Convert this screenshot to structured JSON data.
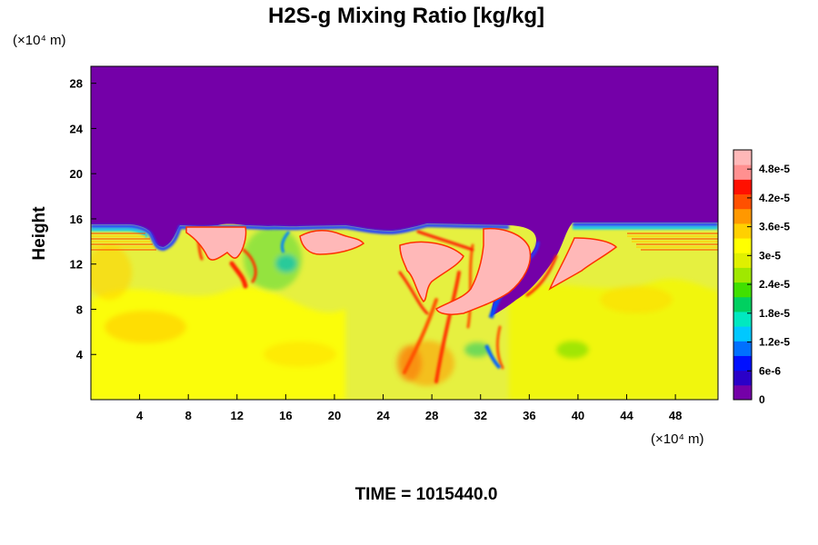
{
  "chart_data": {
    "type": "heatmap",
    "title": "H2S-g Mixing Ratio [kg/kg]",
    "ylabel": "Height",
    "x_unit_label": "(×10⁴ m)",
    "y_unit_label": "(×10⁴ m)",
    "footer": "TIME = 1015440.0",
    "xlim": [
      0,
      51.5
    ],
    "ylim": [
      0,
      29.5
    ],
    "xticks": [
      "4",
      "8",
      "12",
      "16",
      "20",
      "24",
      "28",
      "32",
      "36",
      "40",
      "44",
      "48"
    ],
    "yticks": [
      "4",
      "8",
      "12",
      "16",
      "20",
      "24",
      "28"
    ],
    "colorbar": {
      "range": [
        0,
        5.2e-05
      ],
      "tick_labels": [
        "0",
        "6e-6",
        "1.2e-5",
        "1.8e-5",
        "2.4e-5",
        "3e-5",
        "3.6e-5",
        "4.2e-5",
        "4.8e-5"
      ],
      "tick_values": [
        0,
        6e-06,
        1.2e-05,
        1.8e-05,
        2.4e-05,
        3e-05,
        3.6e-05,
        4.2e-05,
        4.8e-05
      ],
      "colors": [
        "#7400a8",
        "#2a00c8",
        "#0010ff",
        "#0070ff",
        "#00c8ff",
        "#00e8c0",
        "#00d060",
        "#40e000",
        "#a0e800",
        "#e0f000",
        "#ffff00",
        "#ffd000",
        "#ff9800",
        "#ff5000",
        "#ff1000",
        "#ff9090",
        "#ffb8b8"
      ]
    },
    "field_description": {
      "upper_region_value": 0,
      "interface_height": 15.5,
      "background_value": 3.4e-05
    },
    "pink_plumes": [
      {
        "x": [
          7.5,
          11.5
        ],
        "y": [
          11.5,
          15.5
        ]
      },
      {
        "x": [
          17.5,
          23.5
        ],
        "y": [
          12.5,
          15.5
        ]
      },
      {
        "x": [
          26,
          30
        ],
        "y": [
          9.5,
          13.5
        ]
      },
      {
        "x": [
          32,
          36.5
        ],
        "y": [
          8.5,
          15.5
        ]
      },
      {
        "x": [
          38.5,
          42
        ],
        "y": [
          10.5,
          14.5
        ]
      }
    ]
  }
}
